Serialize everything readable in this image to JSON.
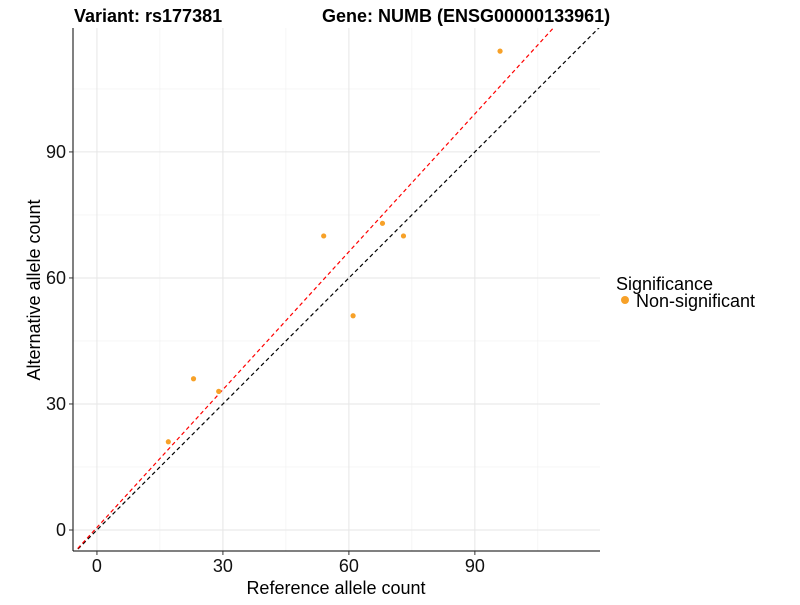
{
  "chart_data": {
    "type": "scatter",
    "title_left": "Variant: rs177381",
    "title_right": "Gene: NUMB (ENSG00000133961)",
    "xlabel": "Reference allele count",
    "ylabel": "Alternative allele count",
    "xlim": [
      -5.7,
      119.8
    ],
    "ylim": [
      -5,
      119.5
    ],
    "xticks": [
      0,
      30,
      60,
      90
    ],
    "yticks": [
      0,
      30,
      60,
      90
    ],
    "minor_ticks": [
      15,
      45,
      75,
      105
    ],
    "grid": true,
    "legend": {
      "title": "Significance",
      "placement": "right",
      "entries": [
        {
          "label": "Non-significant",
          "color": "#f7a128"
        }
      ]
    },
    "series": [
      {
        "name": "Non-significant",
        "color": "#f7a128",
        "points": [
          [
            17,
            21
          ],
          [
            23,
            36
          ],
          [
            29,
            33
          ],
          [
            54,
            70
          ],
          [
            61,
            51
          ],
          [
            68,
            73
          ],
          [
            73,
            70
          ],
          [
            96,
            114
          ]
        ]
      }
    ],
    "lines": [
      {
        "name": "identity",
        "slope": 1,
        "intercept": 0,
        "color": "#000000",
        "style": "dashed"
      },
      {
        "name": "fit",
        "slope": 1.094,
        "intercept": 0.6,
        "color": "#ff0000",
        "style": "dashed"
      }
    ]
  }
}
